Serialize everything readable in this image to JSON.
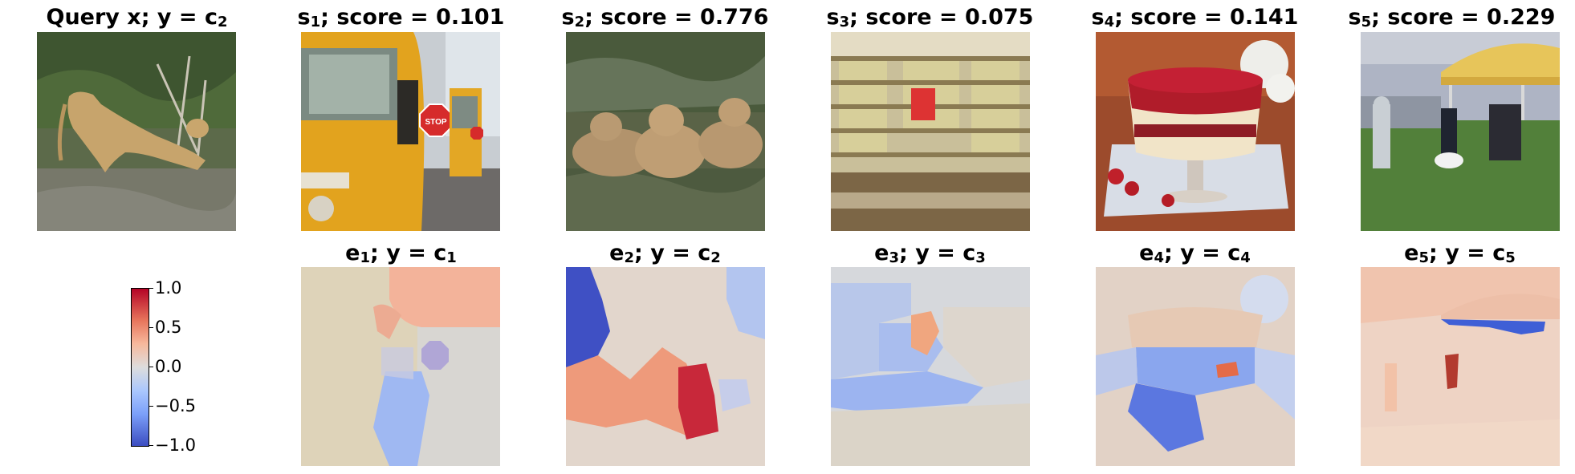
{
  "top_row": [
    {
      "main": "Query x; y",
      "eq": "=",
      "c": "c",
      "c_sub": "2"
    },
    {
      "s": "s",
      "s_sub": "1",
      "score_label": "; score",
      "eq": "=",
      "score": "0.101"
    },
    {
      "s": "s",
      "s_sub": "2",
      "score_label": "; score",
      "eq": "=",
      "score": "0.776"
    },
    {
      "s": "s",
      "s_sub": "3",
      "score_label": "; score",
      "eq": "=",
      "score": "0.075"
    },
    {
      "s": "s",
      "s_sub": "4",
      "score_label": "; score",
      "eq": "=",
      "score": "0.141"
    },
    {
      "s": "s",
      "s_sub": "5",
      "score_label": "; score",
      "eq": "=",
      "score": "0.229"
    }
  ],
  "bottom_row": [
    {
      "e": "e",
      "e_sub": "1",
      "mid": "; y",
      "eq": "=",
      "c": "c",
      "c_sub": "1"
    },
    {
      "e": "e",
      "e_sub": "2",
      "mid": "; y",
      "eq": "=",
      "c": "c",
      "c_sub": "2"
    },
    {
      "e": "e",
      "e_sub": "3",
      "mid": "; y",
      "eq": "=",
      "c": "c",
      "c_sub": "3"
    },
    {
      "e": "e",
      "e_sub": "4",
      "mid": "; y",
      "eq": "=",
      "c": "c",
      "c_sub": "4"
    },
    {
      "e": "e",
      "e_sub": "5",
      "mid": "; y",
      "eq": "=",
      "c": "c",
      "c_sub": "5"
    }
  ],
  "images": {
    "query": "lioness-stretching",
    "s1": "school-bus-stop-sign",
    "s2": "lion-cubs",
    "s3": "bookstore-shelves",
    "s4": "berry-trifle-dessert",
    "s5": "dog-show-tent"
  },
  "colorbar": {
    "ticks": [
      "1.0",
      "0.5",
      "0.0",
      "−0.5",
      "−1.0"
    ],
    "colormap": "coolwarm",
    "range": [
      -1.0,
      1.0
    ],
    "colors": {
      "max": "#b40426",
      "mid": "#dddddd",
      "min": "#3b4cc0"
    }
  }
}
